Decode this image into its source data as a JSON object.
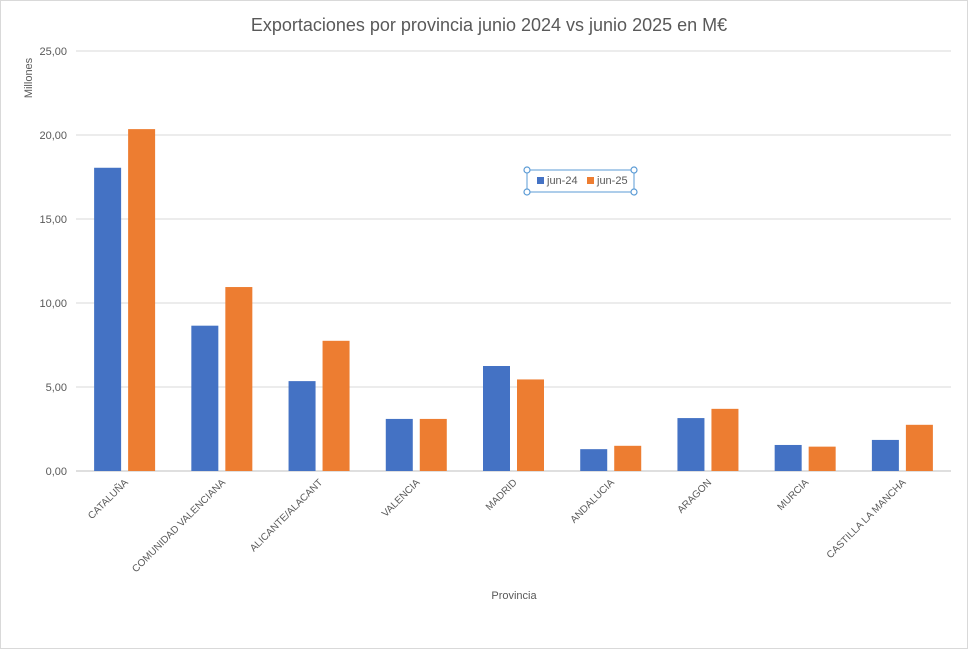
{
  "chart_data": {
    "type": "bar",
    "title": "Exportaciones por provincia junio 2024 vs junio 2025 en M€",
    "xlabel": "Provincia",
    "ylabel": "Millones",
    "ylim": [
      0,
      25
    ],
    "yticks": [
      "0,00",
      "5,00",
      "10,00",
      "15,00",
      "20,00",
      "25,00"
    ],
    "grid": true,
    "legend_position": "center",
    "categories": [
      "CATALUÑA",
      "COMUNIDAD VALENCIANA",
      "ALICANTE/ALACANT",
      "VALENCIA",
      "MADRID",
      "ANDALUCIA",
      "ARAGON",
      "MURCIA",
      "CASTILLA LA MANCHA"
    ],
    "series": [
      {
        "name": "jun-24",
        "color": "#4472C4",
        "values": [
          18.05,
          8.65,
          5.35,
          3.1,
          6.25,
          1.3,
          3.15,
          1.55,
          1.85
        ]
      },
      {
        "name": "jun-25",
        "color": "#ED7D31",
        "values": [
          20.35,
          10.95,
          7.75,
          3.1,
          5.45,
          1.5,
          3.7,
          1.45,
          2.75
        ]
      }
    ]
  }
}
